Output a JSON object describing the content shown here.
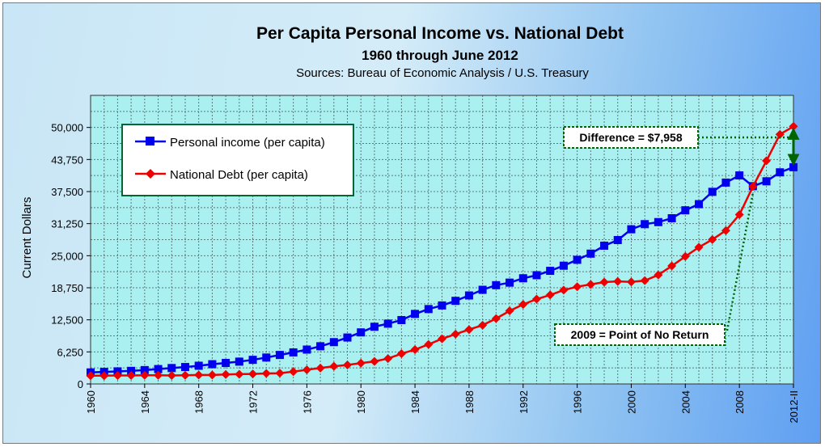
{
  "chart_data": {
    "type": "line",
    "title": "Per Capita Personal Income vs. National Debt",
    "subtitle": "1960 through June 2012",
    "sources": "Sources: Bureau of Economic Analysis / U.S. Treasury",
    "xlabel": "",
    "ylabel": "Current Dollars",
    "ylim": [
      0,
      56250
    ],
    "yticks": [
      "0",
      "6,250",
      "12,500",
      "18,750",
      "25,000",
      "31,250",
      "37,500",
      "43,750",
      "50,000"
    ],
    "ytick_values": [
      0,
      6250,
      12500,
      18750,
      25000,
      31250,
      37500,
      43750,
      50000
    ],
    "x_tick_labels": [
      "1960",
      "1964",
      "1968",
      "1972",
      "1976",
      "1980",
      "1984",
      "1988",
      "1992",
      "1996",
      "2000",
      "2004",
      "2008",
      "2012-II"
    ],
    "x_tick_positions": [
      1960,
      1964,
      1968,
      1972,
      1976,
      1980,
      1984,
      1988,
      1992,
      1996,
      2000,
      2004,
      2008,
      2012
    ],
    "x": [
      1960,
      1961,
      1962,
      1963,
      1964,
      1965,
      1966,
      1967,
      1968,
      1969,
      1970,
      1971,
      1972,
      1973,
      1974,
      1975,
      1976,
      1977,
      1978,
      1979,
      1980,
      1981,
      1982,
      1983,
      1984,
      1985,
      1986,
      1987,
      1988,
      1989,
      1990,
      1991,
      1992,
      1993,
      1994,
      1995,
      1996,
      1997,
      1998,
      1999,
      2000,
      2001,
      2002,
      2003,
      2004,
      2005,
      2006,
      2007,
      2008,
      2009,
      2010,
      2011,
      2012
    ],
    "series": [
      {
        "name": "Personal income (per capita)",
        "color": "#0000ee",
        "marker": "square",
        "values": [
          2250,
          2350,
          2450,
          2550,
          2700,
          2900,
          3100,
          3300,
          3550,
          3850,
          4100,
          4350,
          4700,
          5150,
          5650,
          6150,
          6700,
          7350,
          8150,
          9050,
          10050,
          11150,
          11750,
          12450,
          13650,
          14600,
          15300,
          16200,
          17250,
          18350,
          19250,
          19750,
          20600,
          21200,
          22050,
          23050,
          24200,
          25400,
          26950,
          28050,
          30150,
          31150,
          31550,
          32300,
          33850,
          35050,
          37450,
          39250,
          40650,
          38550,
          39500,
          41250,
          42250
        ]
      },
      {
        "name": "National Debt (per capita)",
        "color": "#ee0000",
        "marker": "diamond",
        "values": [
          1600,
          1600,
          1650,
          1650,
          1700,
          1700,
          1650,
          1700,
          1750,
          1750,
          1850,
          1900,
          1950,
          2050,
          2100,
          2400,
          2750,
          3100,
          3450,
          3700,
          4050,
          4400,
          4950,
          5900,
          6700,
          7700,
          8800,
          9700,
          10600,
          11450,
          12750,
          14250,
          15500,
          16550,
          17350,
          18300,
          18950,
          19400,
          19850,
          20000,
          19900,
          20150,
          21250,
          23000,
          24850,
          26650,
          28150,
          29900,
          33000,
          38500,
          43500,
          48650,
          50200
        ]
      }
    ],
    "legend": {
      "position": "top-left"
    },
    "annotations": [
      {
        "text": "Difference = $7,958",
        "target_x": 2012
      },
      {
        "text": "2009 = Point of No Return",
        "target_x": 2009
      }
    ],
    "grid": true
  },
  "colors": {
    "plot_background": "#aaf0f0",
    "grid": "#5a7a7a",
    "income": "#0000ee",
    "debt": "#ee0000",
    "annotation_line": "#006400"
  }
}
